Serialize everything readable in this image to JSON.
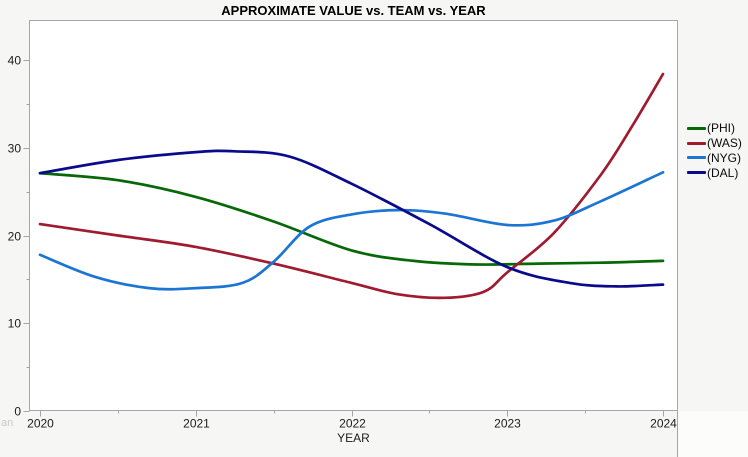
{
  "corner_text": "an",
  "colors": {
    "frame": "#a6a6a6",
    "plot_background": "#ffffff",
    "window_background": "#f6f6f4",
    "tick_label": "#1c1c1c",
    "phi_green": "#066806",
    "was_crimson": "#9f1b30",
    "nyg_blue": "#1c75d3",
    "dal_navy": "#0a0a8c"
  },
  "chart_data": {
    "type": "line",
    "title": "APPROXIMATE VALUE vs. TEAM vs. YEAR",
    "xlabel": "YEAR",
    "ylabel": "",
    "xlim": [
      2020,
      2024
    ],
    "ylim": [
      0,
      40
    ],
    "x_ticks": [
      2020,
      2021,
      2022,
      2023,
      2024
    ],
    "x_minor_ticks": [
      2020.5,
      2021.5,
      2022.5,
      2023.5
    ],
    "y_ticks": [
      0,
      10,
      20,
      30,
      40
    ],
    "y_minor_ticks": [
      5,
      15,
      25,
      35
    ],
    "grid": false,
    "legend_position": "right",
    "years": [
      2020,
      2021,
      2022,
      2023,
      2024
    ],
    "series": [
      {
        "name": "(PHI)",
        "color": "#066806",
        "values": [
          27.1,
          24.4,
          18.3,
          16.8,
          17.1
        ],
        "smooth_points": [
          [
            2020,
            27.1
          ],
          [
            2020.5,
            26.3
          ],
          [
            2021,
            24.4
          ],
          [
            2021.5,
            21.6
          ],
          [
            2022,
            18.3
          ],
          [
            2022.4,
            17.1
          ],
          [
            2022.8,
            16.7
          ],
          [
            2023.2,
            16.8
          ],
          [
            2023.6,
            16.9
          ],
          [
            2024,
            17.1
          ]
        ]
      },
      {
        "name": "(WAS)",
        "color": "#9f1b30",
        "values": [
          21.3,
          18.7,
          14.6,
          15.8,
          38.4
        ],
        "smooth_points": [
          [
            2020,
            21.3
          ],
          [
            2020.5,
            20.0
          ],
          [
            2021,
            18.7
          ],
          [
            2021.5,
            16.8
          ],
          [
            2022,
            14.6
          ],
          [
            2022.3,
            13.3
          ],
          [
            2022.6,
            12.9
          ],
          [
            2022.85,
            13.6
          ],
          [
            2023,
            15.8
          ],
          [
            2023.3,
            20.3
          ],
          [
            2023.6,
            26.9
          ],
          [
            2023.8,
            32.4
          ],
          [
            2024,
            38.4
          ]
        ]
      },
      {
        "name": "(NYG)",
        "color": "#1c75d3",
        "values": [
          17.8,
          14.0,
          22.5,
          21.2,
          27.2
        ],
        "smooth_points": [
          [
            2020,
            17.8
          ],
          [
            2020.35,
            15.3
          ],
          [
            2020.7,
            14.0
          ],
          [
            2021,
            14.0
          ],
          [
            2021.3,
            14.6
          ],
          [
            2021.5,
            17.0
          ],
          [
            2021.73,
            21.0
          ],
          [
            2022,
            22.4
          ],
          [
            2022.3,
            22.9
          ],
          [
            2022.6,
            22.5
          ],
          [
            2023,
            21.2
          ],
          [
            2023.3,
            21.7
          ],
          [
            2023.6,
            23.9
          ],
          [
            2024,
            27.2
          ]
        ]
      },
      {
        "name": "(DAL)",
        "color": "#0a0a8c",
        "values": [
          27.1,
          29.5,
          25.9,
          16.4,
          14.4
        ],
        "smooth_points": [
          [
            2020,
            27.1
          ],
          [
            2020.5,
            28.6
          ],
          [
            2021,
            29.5
          ],
          [
            2021.25,
            29.6
          ],
          [
            2021.6,
            29.0
          ],
          [
            2022,
            25.9
          ],
          [
            2022.5,
            21.3
          ],
          [
            2023,
            16.4
          ],
          [
            2023.4,
            14.6
          ],
          [
            2023.7,
            14.2
          ],
          [
            2024,
            14.4
          ]
        ]
      }
    ]
  }
}
